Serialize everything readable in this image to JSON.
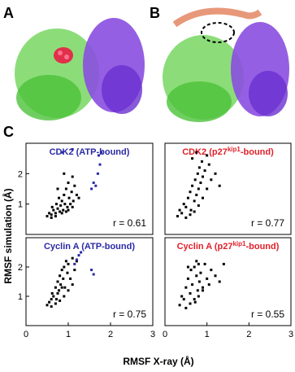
{
  "figure": {
    "panel_labels": [
      "A",
      "B",
      "C"
    ],
    "xlabel": "RMSF X-ray (Å)",
    "ylabel": "RMSF simulation (Å)"
  },
  "chart_data": [
    {
      "type": "scatter",
      "title": [
        "CDK2 (ATP-bound)"
      ],
      "title_color": "#2a2aa6",
      "annotation": "r = 0.61",
      "xlim": [
        0,
        3
      ],
      "ylim": [
        0,
        3
      ],
      "yticks": [
        1,
        2
      ],
      "series": [
        {
          "color": "#000000",
          "x": [
            0.5,
            0.55,
            0.6,
            0.62,
            0.65,
            0.7,
            0.72,
            0.75,
            0.78,
            0.8,
            0.82,
            0.85,
            0.88,
            0.9,
            0.92,
            0.95,
            0.98,
            1.0,
            1.02,
            1.05,
            1.08,
            1.1,
            1.12,
            1.15,
            1.2,
            1.25,
            0.6,
            0.7,
            0.85,
            0.95,
            1.0,
            1.1,
            0.75,
            0.9
          ],
          "values": [
            0.6,
            0.7,
            0.65,
            0.9,
            0.8,
            0.7,
            1.0,
            0.85,
            1.2,
            0.75,
            0.95,
            1.1,
            0.8,
            1.3,
            1.0,
            1.5,
            0.9,
            1.7,
            1.2,
            1.0,
            1.4,
            1.9,
            1.1,
            1.6,
            1.3,
            1.2,
            0.55,
            0.6,
            0.7,
            0.75,
            0.8,
            0.9,
            1.5,
            2.0
          ]
        },
        {
          "color": "#2a2aa6",
          "x": [
            1.55,
            1.6,
            1.65,
            1.7,
            1.72,
            1.75,
            1.78,
            0.85,
            1.1
          ],
          "values": [
            1.5,
            1.7,
            1.6,
            2.0,
            2.6,
            2.3,
            2.7,
            2.7,
            2.8
          ]
        }
      ]
    },
    {
      "type": "scatter",
      "title": [
        "CDK2 (p27",
        "kip1",
        "-bound)"
      ],
      "title_color": "#e0202a",
      "annotation": "r = 0.77",
      "xlim": [
        0,
        3
      ],
      "ylim": [
        0,
        3
      ],
      "series": [
        {
          "color": "#000000",
          "x": [
            0.3,
            0.35,
            0.4,
            0.45,
            0.5,
            0.55,
            0.6,
            0.62,
            0.65,
            0.7,
            0.72,
            0.75,
            0.78,
            0.8,
            0.82,
            0.85,
            0.88,
            0.9,
            0.95,
            1.0,
            1.05,
            1.1,
            1.2,
            1.3,
            0.5,
            0.6,
            0.7,
            0.8,
            0.9,
            1.0,
            0.65,
            0.75
          ],
          "values": [
            0.6,
            0.8,
            0.7,
            1.0,
            0.9,
            1.2,
            1.4,
            0.8,
            1.6,
            1.1,
            1.8,
            1.3,
            2.0,
            1.5,
            2.2,
            1.7,
            2.4,
            1.9,
            2.1,
            2.6,
            2.3,
            1.8,
            2.0,
            1.6,
            0.55,
            0.65,
            0.75,
            0.95,
            1.2,
            1.5,
            2.5,
            2.7
          ]
        }
      ]
    },
    {
      "type": "scatter",
      "title": [
        "Cyclin A (ATP-bound)"
      ],
      "title_color": "#2a2aa6",
      "annotation": "r = 0.75",
      "xlim": [
        0,
        3
      ],
      "ylim": [
        0,
        3
      ],
      "xticks": [
        0,
        1,
        2,
        3
      ],
      "yticks": [
        1,
        2
      ],
      "series": [
        {
          "color": "#000000",
          "x": [
            0.5,
            0.55,
            0.6,
            0.62,
            0.65,
            0.7,
            0.72,
            0.75,
            0.78,
            0.8,
            0.82,
            0.85,
            0.88,
            0.9,
            0.92,
            0.95,
            0.98,
            1.0,
            1.05,
            1.1,
            1.15,
            1.2,
            0.6,
            0.7,
            0.8,
            0.9,
            1.0,
            1.1,
            0.75,
            0.85
          ],
          "values": [
            0.7,
            0.8,
            0.9,
            1.1,
            1.0,
            1.3,
            0.9,
            1.5,
            1.2,
            1.7,
            1.4,
            1.9,
            1.6,
            2.0,
            1.3,
            2.2,
            1.8,
            2.1,
            1.6,
            2.3,
            1.9,
            2.2,
            0.65,
            0.75,
            0.85,
            1.0,
            1.2,
            1.4,
            1.1,
            1.3
          ]
        },
        {
          "color": "#2a2aa6",
          "x": [
            1.15,
            1.2,
            1.25,
            1.3,
            1.55,
            1.6
          ],
          "values": [
            2.1,
            2.25,
            2.4,
            2.5,
            1.9,
            1.75
          ]
        }
      ]
    },
    {
      "type": "scatter",
      "title": [
        "Cyclin A (p27",
        "kip1",
        "-bound)"
      ],
      "title_color": "#e0202a",
      "annotation": "r = 0.55",
      "xlim": [
        0,
        3
      ],
      "ylim": [
        0,
        3
      ],
      "xticks": [
        0,
        1,
        2,
        3
      ],
      "series": [
        {
          "color": "#000000",
          "x": [
            0.35,
            0.4,
            0.45,
            0.5,
            0.55,
            0.6,
            0.62,
            0.65,
            0.7,
            0.72,
            0.75,
            0.78,
            0.8,
            0.82,
            0.85,
            0.9,
            0.95,
            1.0,
            1.05,
            1.1,
            1.2,
            1.3,
            1.4,
            0.5,
            0.6,
            0.7,
            0.8,
            0.9,
            0.55,
            0.75
          ],
          "values": [
            0.7,
            1.0,
            0.9,
            1.3,
            1.6,
            1.1,
            1.9,
            1.4,
            2.0,
            0.8,
            1.7,
            1.2,
            2.1,
            1.5,
            1.8,
            1.3,
            2.1,
            1.6,
            1.4,
            1.9,
            1.7,
            1.5,
            2.1,
            0.6,
            0.75,
            0.9,
            1.0,
            1.2,
            2.0,
            2.2
          ]
        }
      ]
    }
  ]
}
